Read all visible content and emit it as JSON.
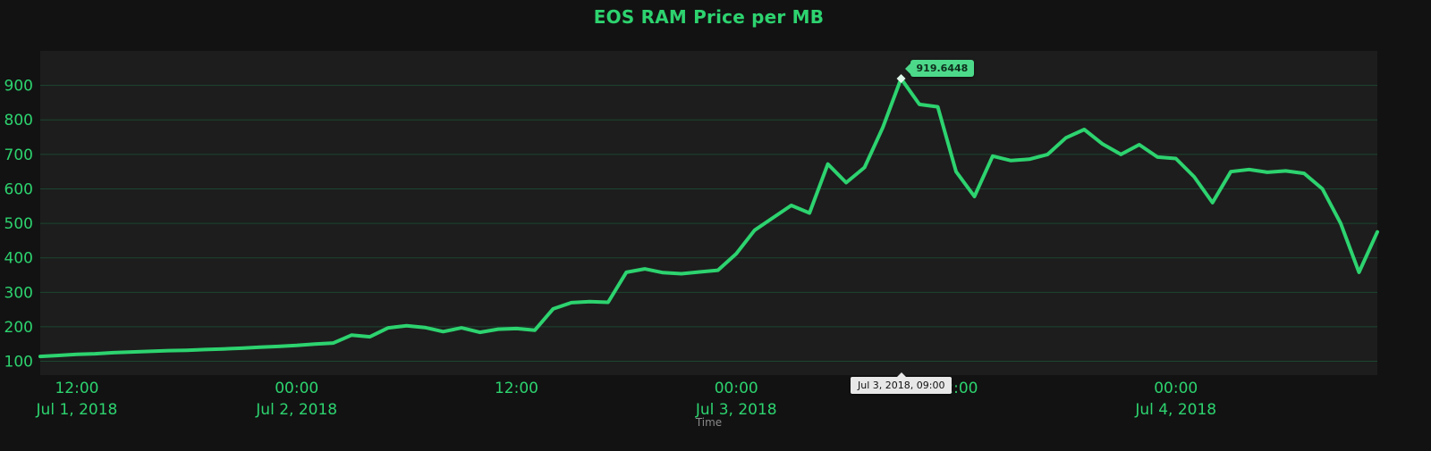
{
  "chart_data": {
    "type": "line",
    "title": "EOS RAM Price per MB",
    "xlabel": "Time",
    "ylabel": "",
    "x_unit": "hour",
    "x_start": "Jul 1, 2018 10:00",
    "x_interval_hours": 1,
    "ylim": [
      60,
      1000
    ],
    "y_ticks": [
      100,
      200,
      300,
      400,
      500,
      600,
      700,
      800,
      900
    ],
    "grid": "horizontal",
    "legend": "none",
    "x_ticks": [
      {
        "hour": 2,
        "label": "12:00"
      },
      {
        "hour": 14,
        "label": "00:00"
      },
      {
        "hour": 26,
        "label": "12:00"
      },
      {
        "hour": 38,
        "label": "00:00"
      },
      {
        "hour": 50,
        "label": "12:00"
      },
      {
        "hour": 62,
        "label": "00:00"
      }
    ],
    "x_date_labels": [
      {
        "hour": 2,
        "label": "Jul 1, 2018"
      },
      {
        "hour": 14,
        "label": "Jul 2, 2018"
      },
      {
        "hour": 38,
        "label": "Jul 3, 2018"
      },
      {
        "hour": 62,
        "label": "Jul 4, 2018"
      }
    ],
    "values": [
      114,
      117,
      120,
      122,
      125,
      127,
      129,
      131,
      132,
      134,
      136,
      138,
      141,
      143,
      146,
      150,
      153,
      176,
      171,
      197,
      203,
      198,
      186,
      197,
      184,
      193,
      195,
      190,
      252,
      270,
      273,
      271,
      358,
      368,
      357,
      354,
      359,
      364,
      412,
      480,
      516,
      552,
      530,
      672,
      618,
      662,
      778,
      919.6448,
      845,
      838,
      650,
      578,
      695,
      682,
      686,
      700,
      748,
      772,
      730,
      700,
      728,
      692,
      688,
      635,
      560,
      650,
      656,
      648,
      652,
      645,
      600,
      500,
      358,
      475
    ]
  },
  "annotations": {
    "peak_label": "919.6448",
    "peak_hour": 47,
    "peak_value": 919.6448,
    "crosshair_label": "Jul 3, 2018, 09:00",
    "crosshair_hour": 47
  },
  "colors": {
    "background": "#121212",
    "plot_background": "#1d1d1d",
    "line": "#2dd36f",
    "grid": "#1c4631",
    "tick_label": "#2dd36f",
    "title": "#2dd36f",
    "axis_title": "#8a8a8a",
    "peak_marker": "#dff7ea",
    "peak_tooltip_bg": "#4cd98a",
    "peak_tooltip_text": "#0e2e1c",
    "crosshair_bg": "#e8e8e8",
    "crosshair_text": "#111111"
  }
}
